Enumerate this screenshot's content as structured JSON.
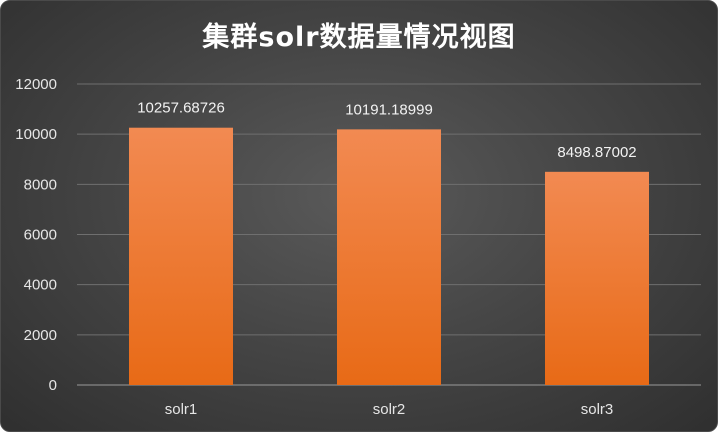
{
  "chart_data": {
    "type": "bar",
    "title": "集群solr数据量情况视图",
    "xlabel": "",
    "ylabel": "",
    "categories": [
      "solr1",
      "solr2",
      "solr3"
    ],
    "values": [
      10257.68726,
      10191.18999,
      8498.87002
    ],
    "data_labels": [
      "10257.68726",
      "10191.18999",
      "8498.87002"
    ],
    "ylim": [
      0,
      12000
    ],
    "yticks": [
      0,
      2000,
      4000,
      6000,
      8000,
      10000,
      12000
    ],
    "grid": true,
    "legend": "none"
  },
  "colors": {
    "bar_top": "#f28a52",
    "bar_bottom": "#e86a16",
    "gridline": "#6f6f6f",
    "axis": "#9a9a9a",
    "background": "#464646"
  }
}
